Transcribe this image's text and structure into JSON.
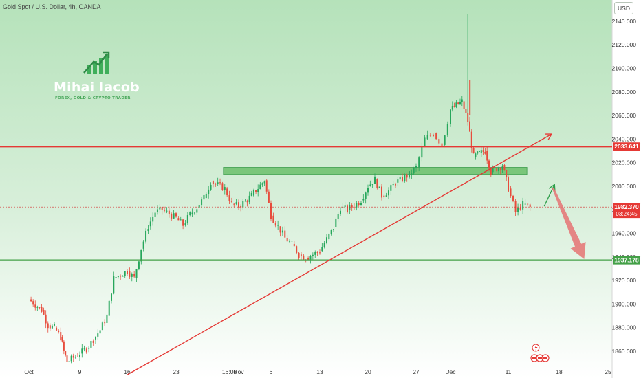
{
  "header": {
    "symbol_title": "Gold Spot / U.S. Dollar, 4h, OANDA",
    "currency": "USD"
  },
  "branding": {
    "name": "Mihai Iacob",
    "tagline": "FOREX, GOLD & CRYPTO TRADER"
  },
  "price_labels": {
    "resistance": "2033.641",
    "current": "1982.370",
    "countdown": "03:24:45",
    "support": "1937.178"
  },
  "colors": {
    "background_top": "#b5e2ba",
    "background_bottom": "#ffffff",
    "up_candle": "#26a65b",
    "down_candle": "#e74c3c",
    "resistance_line": "#e53935",
    "support_line": "#43a047",
    "trendline": "#e53935",
    "zone": "#5cb85c"
  },
  "chart_data": {
    "type": "candlestick",
    "title": "Gold Spot / U.S. Dollar, 4h, OANDA",
    "x_tick_labels": [
      "Oct",
      "9",
      "16",
      "23",
      "16:00",
      "Nov",
      "6",
      "13",
      "20",
      "27",
      "Dec",
      "11",
      "18",
      "25"
    ],
    "y_tick_labels": [
      1860,
      1880,
      1900,
      1920,
      1940,
      1960,
      1980,
      2000,
      2020,
      2040,
      2060,
      2080,
      2100,
      2120,
      2140
    ],
    "y_tick_format": "3dp",
    "ylim": [
      1846,
      2158
    ],
    "grid": false,
    "horizontal_levels": [
      {
        "name": "resistance",
        "value": 2033.641
      },
      {
        "name": "support",
        "value": 1937.178
      }
    ],
    "current_price": 1982.37,
    "zone": {
      "from": "Oct 30",
      "to": "Dec 13",
      "low": 2010,
      "high": 2016
    },
    "trendline": {
      "from": {
        "date": "Oct 16",
        "price": 1840
      },
      "to": {
        "date": "Dec 15",
        "price": 2044
      }
    },
    "projection_arrows": [
      {
        "kind": "up",
        "from": {
          "date": "Dec 15",
          "price": 1983
        },
        "to": {
          "date": "Dec 16",
          "price": 2001
        }
      },
      {
        "kind": "down",
        "from": {
          "date": "Dec 16",
          "price": 2001
        },
        "to": {
          "date": "Dec 21",
          "price": 1937
        }
      }
    ],
    "series": [
      {
        "points": [
          {
            "date": "Oct 1",
            "close": 1904
          },
          {
            "date": "Oct 3",
            "close": 1895
          },
          {
            "date": "Oct 4",
            "close": 1882
          },
          {
            "date": "Oct 5",
            "close": 1880
          },
          {
            "date": "Oct 6",
            "close": 1872
          },
          {
            "date": "Oct 6b",
            "close": 1860
          },
          {
            "date": "Oct 7",
            "close": 1851
          },
          {
            "date": "Oct 9",
            "close": 1858
          },
          {
            "date": "Oct 10",
            "close": 1862
          },
          {
            "date": "Oct 11",
            "close": 1870
          },
          {
            "date": "Oct 12",
            "close": 1878
          },
          {
            "date": "Oct 13",
            "close": 1890
          },
          {
            "date": "Oct 14",
            "close": 1922
          },
          {
            "date": "Oct 16",
            "close": 1928
          },
          {
            "date": "Oct 17",
            "close": 1922
          },
          {
            "date": "Oct 18",
            "close": 1947
          },
          {
            "date": "Oct 19",
            "close": 1966
          },
          {
            "date": "Oct 20",
            "close": 1978
          },
          {
            "date": "Oct 21",
            "close": 1980
          },
          {
            "date": "Oct 23",
            "close": 1973
          },
          {
            "date": "Oct 24",
            "close": 1967
          },
          {
            "date": "Oct 25",
            "close": 1976
          },
          {
            "date": "Oct 26",
            "close": 1982
          },
          {
            "date": "Oct 27",
            "close": 1990
          },
          {
            "date": "Oct 28",
            "close": 2004
          },
          {
            "date": "Oct 30",
            "close": 1998
          },
          {
            "date": "Oct 31",
            "close": 1985
          },
          {
            "date": "Nov 1",
            "close": 1983
          },
          {
            "date": "Nov 2",
            "close": 1987
          },
          {
            "date": "Nov 3",
            "close": 1992
          },
          {
            "date": "Nov 5",
            "close": 2005
          },
          {
            "date": "Nov 6",
            "close": 1975
          },
          {
            "date": "Nov 7",
            "close": 1966
          },
          {
            "date": "Nov 8",
            "close": 1956
          },
          {
            "date": "Nov 9",
            "close": 1951
          },
          {
            "date": "Nov 10",
            "close": 1942
          },
          {
            "date": "Nov 11",
            "close": 1939
          },
          {
            "date": "Nov 13",
            "close": 1945
          },
          {
            "date": "Nov 14",
            "close": 1955
          },
          {
            "date": "Nov 15",
            "close": 1965
          },
          {
            "date": "Nov 16",
            "close": 1982
          },
          {
            "date": "Nov 17",
            "close": 1980
          },
          {
            "date": "Nov 19",
            "close": 1988
          },
          {
            "date": "Nov 20",
            "close": 2000
          },
          {
            "date": "Nov 21",
            "close": 2006
          },
          {
            "date": "Nov 22",
            "close": 1992
          },
          {
            "date": "Nov 23",
            "close": 1996
          },
          {
            "date": "Nov 24",
            "close": 2003
          },
          {
            "date": "Nov 26",
            "close": 2010
          },
          {
            "date": "Nov 27",
            "close": 2016
          },
          {
            "date": "Nov 28",
            "close": 2040
          },
          {
            "date": "Nov 29",
            "close": 2045
          },
          {
            "date": "Nov 30",
            "close": 2035
          },
          {
            "date": "Dec 1",
            "close": 2065
          },
          {
            "date": "Dec 3",
            "close": 2072
          },
          {
            "date": "Dec 4",
            "close": 2055
          },
          {
            "date": "Dec 5",
            "close": 2025
          },
          {
            "date": "Dec 6",
            "close": 2028
          },
          {
            "date": "Dec 7",
            "close": 2030
          },
          {
            "date": "Dec 8",
            "close": 2012
          },
          {
            "date": "Dec 10",
            "close": 2018
          },
          {
            "date": "Dec 11",
            "close": 1998
          },
          {
            "date": "Dec 12",
            "close": 1978
          },
          {
            "date": "Dec 13",
            "close": 1985
          },
          {
            "date": "Dec 14",
            "close": 1982
          }
        ]
      }
    ]
  }
}
